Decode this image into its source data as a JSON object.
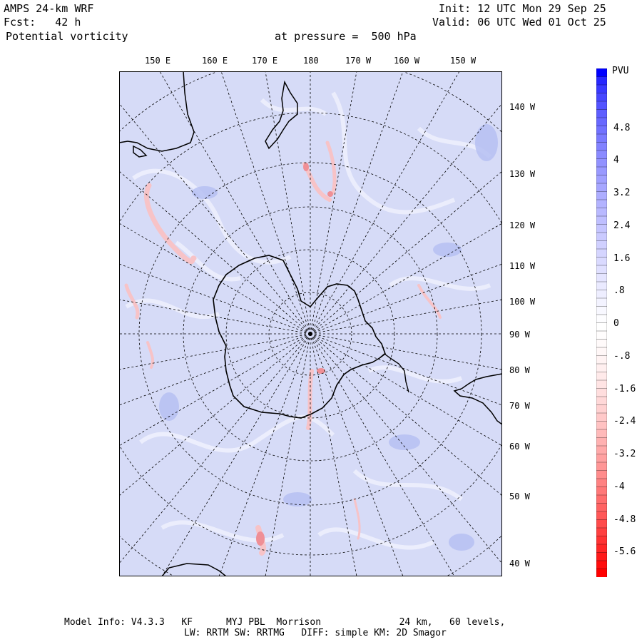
{
  "header": {
    "model": "AMPS 24-km WRF",
    "forecast": "Fcst:   42 h",
    "field": "Potential vorticity",
    "level": "at pressure =  500 hPa",
    "init": "Init: 12 UTC Mon 29 Sep 25",
    "valid": "Valid: 06 UTC Wed 01 Oct 25"
  },
  "map": {
    "top_longitudes": [
      "150 E",
      "160 E",
      "170 E",
      "180",
      "170 W",
      "160 W",
      "150 W"
    ],
    "right_longitudes": [
      "140 W",
      "130 W",
      "120 W",
      "110 W",
      "100 W",
      "90 W",
      "80 W",
      "70 W",
      "60 W",
      "50 W",
      "40 W"
    ]
  },
  "colorbar": {
    "title": "PVU",
    "labels": [
      "4.8",
      "4",
      "3.2",
      "2.4",
      "1.6",
      ".8",
      "0",
      "-.8",
      "-1.6",
      "-2.4",
      "-3.2",
      "-4",
      "-4.8",
      "-5.6"
    ],
    "colors": {
      "positive_max": "#0000ff",
      "neutral": "#ffffff",
      "negative_max": "#ff0000",
      "background_field": "#d6dbf7"
    }
  },
  "footer": {
    "line1": "Model Info: V4.3.3   KF      MYJ PBL  Morrison              24 km,   60 levels,",
    "line2": "LW: RRTM SW: RRTMG   DIFF: simple KM: 2D Smagor"
  }
}
